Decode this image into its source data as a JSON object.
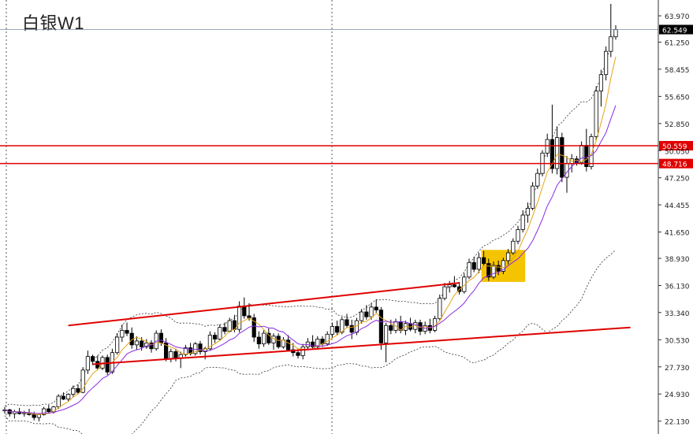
{
  "title": "白银W1",
  "chart_data": {
    "type": "candlestick",
    "symbol": "白银",
    "timeframe": "W1",
    "title": "白银W1",
    "ylim": [
      20.8,
      65.6
    ],
    "y_ticks": [
      "63.970",
      "61.250",
      "58.455",
      "55.650",
      "52.850",
      "50.050",
      "47.250",
      "44.455",
      "41.650",
      "38.930",
      "36.130",
      "33.340",
      "30.530",
      "27.730",
      "24.930",
      "22.130"
    ],
    "current_price": "62.549",
    "horizontal_levels": [
      "50.559",
      "48.716"
    ],
    "candles": [
      [
        23.2,
        23.6,
        22.9,
        23.3
      ],
      [
        23.3,
        23.4,
        22.6,
        22.9
      ],
      [
        22.9,
        23.3,
        22.4,
        23.1
      ],
      [
        23.1,
        23.5,
        22.8,
        22.9
      ],
      [
        22.9,
        23.2,
        22.6,
        23.0
      ],
      [
        23.0,
        23.4,
        22.7,
        22.8
      ],
      [
        22.8,
        23.1,
        22.2,
        22.5
      ],
      [
        22.5,
        22.9,
        22.1,
        22.8
      ],
      [
        22.8,
        23.6,
        22.7,
        23.4
      ],
      [
        23.4,
        23.8,
        22.9,
        23.1
      ],
      [
        23.1,
        23.7,
        22.9,
        23.6
      ],
      [
        23.6,
        24.9,
        23.4,
        24.7
      ],
      [
        24.7,
        25.1,
        24.3,
        24.4
      ],
      [
        24.4,
        25.0,
        24.2,
        24.9
      ],
      [
        24.9,
        25.8,
        24.6,
        25.5
      ],
      [
        25.5,
        25.9,
        24.9,
        25.1
      ],
      [
        25.1,
        27.7,
        25.0,
        27.4
      ],
      [
        27.4,
        29.4,
        27.0,
        28.8
      ],
      [
        28.8,
        29.0,
        27.9,
        28.3
      ],
      [
        28.3,
        28.9,
        27.4,
        27.6
      ],
      [
        27.6,
        28.9,
        27.4,
        28.7
      ],
      [
        28.7,
        29.0,
        26.9,
        27.2
      ],
      [
        27.2,
        29.6,
        27.0,
        29.2
      ],
      [
        29.2,
        31.2,
        29.0,
        30.8
      ],
      [
        30.8,
        32.1,
        30.3,
        31.5
      ],
      [
        31.5,
        32.3,
        30.9,
        31.2
      ],
      [
        31.2,
        31.8,
        29.6,
        30.0
      ],
      [
        30.0,
        30.9,
        29.5,
        30.4
      ],
      [
        30.4,
        30.8,
        29.4,
        29.8
      ],
      [
        29.8,
        30.6,
        29.6,
        30.2
      ],
      [
        30.2,
        30.5,
        29.2,
        29.6
      ],
      [
        29.6,
        31.5,
        29.4,
        31.2
      ],
      [
        31.2,
        31.6,
        29.9,
        30.2
      ],
      [
        30.2,
        30.7,
        28.3,
        28.6
      ],
      [
        28.6,
        29.6,
        28.2,
        29.3
      ],
      [
        29.3,
        29.6,
        28.3,
        28.6
      ],
      [
        28.6,
        29.3,
        27.6,
        29.0
      ],
      [
        29.0,
        30.0,
        28.8,
        29.7
      ],
      [
        29.7,
        30.2,
        28.9,
        29.1
      ],
      [
        29.1,
        30.3,
        28.9,
        30.1
      ],
      [
        30.1,
        30.4,
        29.0,
        29.3
      ],
      [
        29.3,
        29.8,
        28.5,
        29.6
      ],
      [
        29.6,
        31.4,
        29.4,
        31.0
      ],
      [
        31.0,
        31.3,
        30.2,
        30.6
      ],
      [
        30.6,
        32.1,
        30.4,
        31.8
      ],
      [
        31.8,
        32.3,
        31.1,
        31.4
      ],
      [
        31.4,
        32.8,
        31.3,
        32.5
      ],
      [
        32.5,
        33.1,
        31.3,
        31.6
      ],
      [
        31.6,
        34.5,
        31.3,
        34.0
      ],
      [
        34.0,
        34.9,
        32.7,
        33.0
      ],
      [
        33.0,
        34.3,
        32.5,
        32.8
      ],
      [
        32.8,
        33.2,
        30.3,
        30.8
      ],
      [
        30.8,
        31.4,
        29.6,
        30.1
      ],
      [
        30.1,
        31.5,
        29.8,
        31.2
      ],
      [
        31.2,
        31.7,
        30.0,
        30.2
      ],
      [
        30.2,
        31.2,
        29.5,
        30.9
      ],
      [
        30.9,
        31.2,
        29.6,
        29.8
      ],
      [
        29.8,
        30.8,
        29.6,
        30.5
      ],
      [
        30.5,
        31.0,
        29.3,
        29.5
      ],
      [
        29.5,
        30.2,
        28.8,
        29.2
      ],
      [
        29.2,
        29.6,
        28.6,
        28.9
      ],
      [
        28.9,
        30.1,
        28.5,
        29.8
      ],
      [
        29.8,
        30.7,
        29.5,
        30.3
      ],
      [
        30.3,
        31.0,
        29.6,
        29.8
      ],
      [
        29.8,
        30.9,
        29.6,
        30.6
      ],
      [
        30.6,
        30.9,
        29.8,
        30.1
      ],
      [
        30.1,
        31.4,
        29.9,
        31.1
      ],
      [
        31.1,
        32.3,
        30.7,
        31.9
      ],
      [
        31.9,
        32.5,
        31.0,
        31.3
      ],
      [
        31.3,
        32.9,
        31.1,
        32.6
      ],
      [
        32.6,
        33.2,
        31.8,
        32.0
      ],
      [
        32.0,
        32.6,
        30.6,
        31.3
      ],
      [
        31.3,
        32.8,
        31.0,
        32.5
      ],
      [
        32.5,
        33.7,
        32.2,
        33.4
      ],
      [
        33.4,
        34.1,
        32.6,
        32.9
      ],
      [
        32.9,
        34.3,
        32.6,
        33.9
      ],
      [
        33.9,
        34.7,
        33.3,
        33.6
      ],
      [
        33.6,
        33.9,
        29.5,
        30.2
      ],
      [
        30.2,
        32.3,
        28.2,
        32.0
      ],
      [
        32.0,
        32.6,
        31.1,
        31.5
      ],
      [
        31.5,
        32.7,
        31.2,
        32.4
      ],
      [
        32.4,
        33.0,
        31.2,
        31.5
      ],
      [
        31.5,
        32.5,
        31.0,
        32.2
      ],
      [
        32.2,
        32.8,
        31.4,
        31.6
      ],
      [
        31.6,
        32.6,
        31.2,
        32.3
      ],
      [
        32.3,
        32.6,
        31.0,
        31.4
      ],
      [
        31.4,
        32.4,
        31.1,
        32.0
      ],
      [
        32.0,
        32.7,
        31.2,
        31.5
      ],
      [
        31.5,
        33.0,
        31.3,
        32.7
      ],
      [
        32.7,
        35.2,
        32.5,
        34.8
      ],
      [
        34.8,
        36.4,
        34.6,
        36.0
      ],
      [
        36.0,
        36.6,
        35.4,
        36.2
      ],
      [
        36.2,
        37.1,
        35.9,
        36.0
      ],
      [
        36.0,
        36.5,
        35.2,
        35.5
      ],
      [
        35.5,
        37.4,
        35.3,
        37.0
      ],
      [
        37.0,
        38.9,
        36.8,
        38.5
      ],
      [
        38.5,
        39.1,
        37.5,
        37.8
      ],
      [
        37.8,
        39.5,
        37.4,
        39.0
      ],
      [
        39.0,
        39.7,
        38.2,
        38.4
      ],
      [
        38.4,
        38.9,
        36.6,
        37.0
      ],
      [
        37.0,
        38.6,
        36.8,
        38.2
      ],
      [
        38.2,
        38.7,
        37.2,
        37.6
      ],
      [
        37.6,
        39.0,
        37.3,
        38.7
      ],
      [
        38.7,
        39.9,
        38.3,
        39.5
      ],
      [
        39.5,
        41.0,
        39.3,
        40.7
      ],
      [
        40.7,
        42.3,
        40.4,
        41.9
      ],
      [
        41.9,
        43.9,
        41.6,
        43.4
      ],
      [
        43.4,
        44.7,
        42.6,
        44.1
      ],
      [
        44.1,
        46.8,
        43.9,
        46.4
      ],
      [
        46.4,
        48.2,
        46.1,
        47.7
      ],
      [
        47.7,
        50.1,
        47.4,
        49.8
      ],
      [
        49.8,
        51.8,
        49.4,
        51.2
      ],
      [
        51.2,
        54.8,
        47.7,
        48.2
      ],
      [
        48.2,
        52.5,
        47.6,
        51.4
      ],
      [
        51.4,
        51.9,
        46.8,
        47.3
      ],
      [
        47.3,
        49.5,
        45.7,
        48.7
      ],
      [
        48.7,
        49.7,
        47.8,
        49.2
      ],
      [
        49.2,
        49.5,
        48.5,
        48.8
      ],
      [
        48.8,
        51.0,
        48.6,
        50.6
      ],
      [
        50.6,
        52.3,
        47.9,
        48.4
      ],
      [
        48.4,
        51.8,
        48.1,
        51.5
      ],
      [
        51.5,
        56.7,
        51.1,
        56.2
      ],
      [
        56.2,
        58.4,
        54.6,
        57.9
      ],
      [
        57.9,
        60.8,
        57.3,
        60.3
      ],
      [
        60.3,
        65.2,
        59.7,
        61.8
      ],
      [
        61.8,
        63.0,
        61.5,
        62.549
      ]
    ],
    "channel_lines": [
      {
        "name": "upper",
        "points": [
          [
            13,
            32.0
          ],
          [
            93,
            36.4
          ]
        ]
      },
      {
        "name": "lower",
        "points": [
          [
            18,
            28.0
          ],
          [
            128,
            31.8
          ]
        ]
      }
    ],
    "highlight_box": {
      "from_index": 98,
      "to_index": 106,
      "y_range": [
        36.5,
        39.8
      ]
    }
  }
}
